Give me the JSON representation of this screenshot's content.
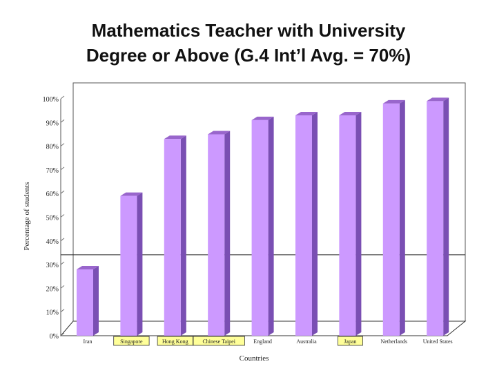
{
  "chart_data": {
    "type": "bar",
    "title_line1": "Mathematics Teacher with University",
    "title_line2": "Degree or Above (G.4 Int’l Avg. = 70%)",
    "xlabel": "Countries",
    "ylabel": "Percentage of students",
    "ylim": [
      0,
      100
    ],
    "y_ticks": [
      "0%",
      "10%",
      "20%",
      "30%",
      "40%",
      "50%",
      "60%",
      "70%",
      "80%",
      "90%",
      "100%"
    ],
    "categories": [
      "Iran",
      "Singapore",
      "Hong Kong",
      "Chinese Taipei",
      "England",
      "Australia",
      "Japan",
      "Netherlands",
      "United States"
    ],
    "values": [
      28,
      59,
      83,
      85,
      91,
      93,
      93,
      98,
      99
    ],
    "highlighted_categories": [
      "Singapore",
      "Hong Kong",
      "Chinese Taipei",
      "Japan"
    ],
    "reference_line_value": 34,
    "bar_color": "#cc99ff",
    "bar_side_color": "#7a4fb3",
    "bar_top_color": "#9966cc",
    "highlight_color": "#ffff99",
    "grid": false,
    "legend": "none"
  }
}
